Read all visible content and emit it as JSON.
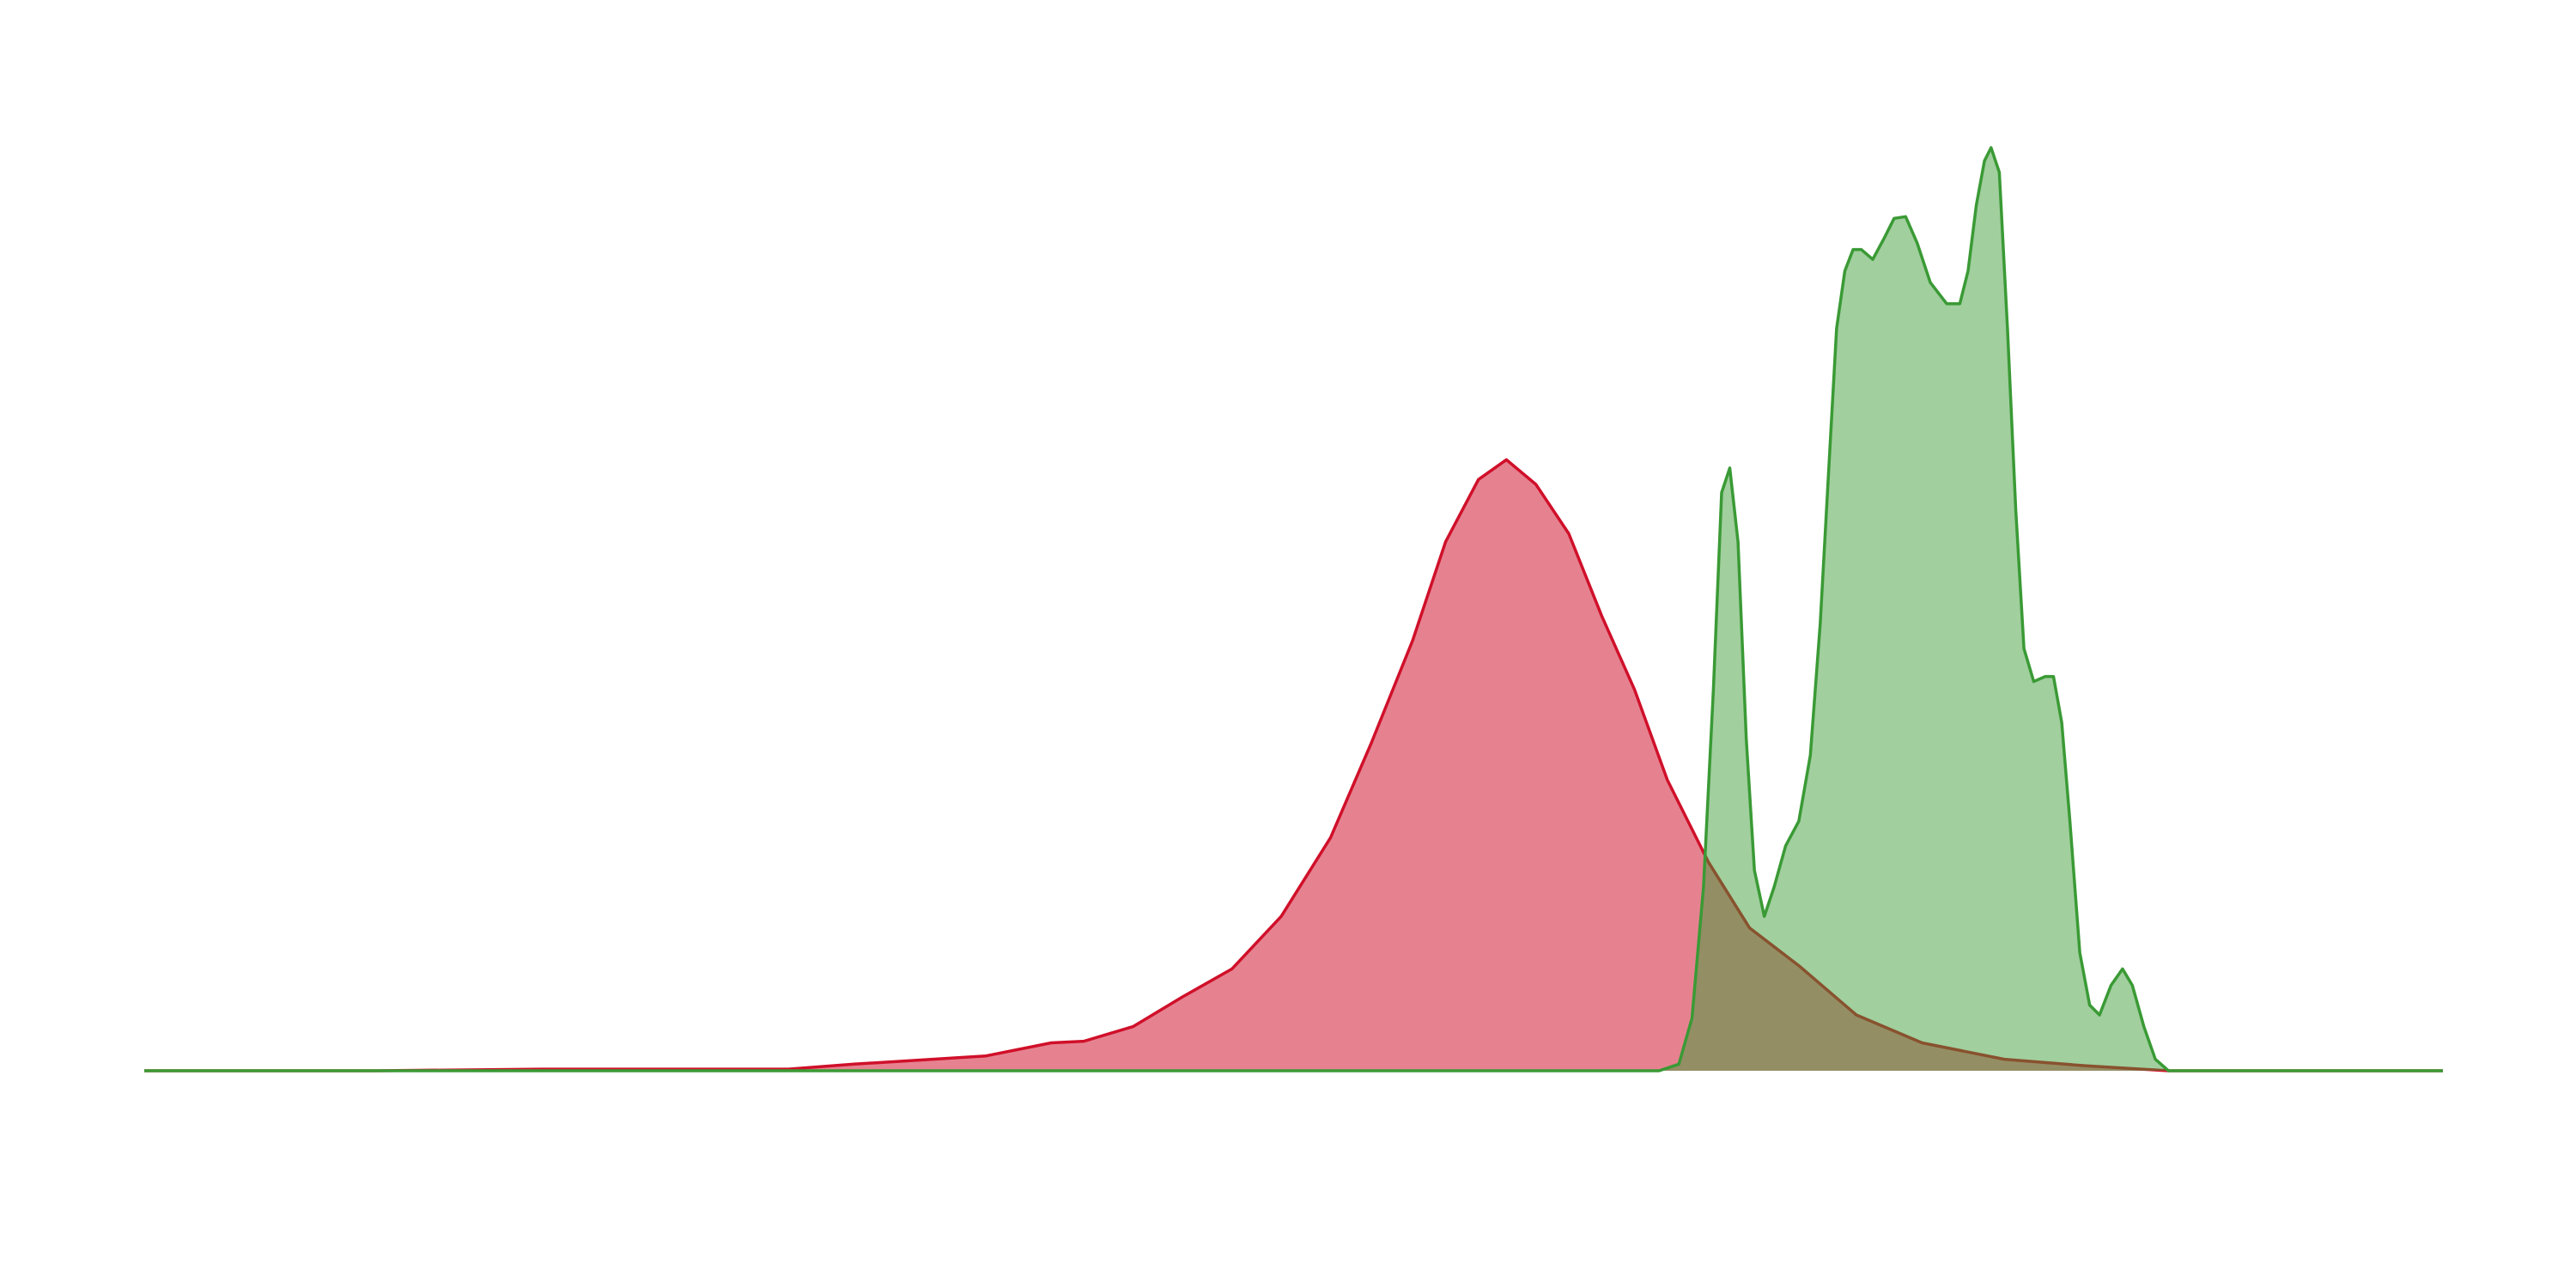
{
  "chart_data": {
    "type": "area",
    "xlim": [
      0,
      1399
    ],
    "ylim": [
      0,
      562
    ],
    "series": [
      {
        "color": "#d0102a",
        "x": [
          0,
          142,
          242,
          312,
          392,
          432,
          512,
          552,
          572,
          602,
          632,
          662,
          692,
          722,
          747,
          772,
          792,
          812,
          829,
          847,
          867,
          887,
          907,
          927,
          952,
          977,
          1007,
          1042,
          1082,
          1132,
          1182,
          1232,
          1312,
          1399
        ],
        "values": [
          0,
          0,
          1,
          1,
          1,
          4,
          9,
          17,
          18,
          27,
          45,
          62,
          94,
          142,
          200,
          262,
          322,
          360,
          372,
          357,
          327,
          277,
          232,
          177,
          127,
          87,
          64,
          34,
          17,
          7,
          3,
          0,
          0,
          0
        ]
      },
      {
        "color": "#3a9a35",
        "x": [
          0,
          922,
          934,
          942,
          949,
          955,
          960,
          965,
          970,
          975,
          980,
          986,
          992,
          999,
          1007,
          1014,
          1020,
          1025,
          1030,
          1035,
          1040,
          1045,
          1052,
          1059,
          1065,
          1072,
          1079,
          1087,
          1097,
          1105,
          1110,
          1115,
          1120,
          1124,
          1129,
          1134,
          1139,
          1144,
          1150,
          1157,
          1162,
          1167,
          1172,
          1178,
          1184,
          1190,
          1197,
          1204,
          1210,
          1217,
          1224,
          1232,
          1399
        ],
        "values": [
          0,
          0,
          4,
          32,
          112,
          232,
          352,
          367,
          322,
          202,
          122,
          94,
          112,
          137,
          152,
          192,
          272,
          362,
          452,
          487,
          500,
          500,
          494,
          507,
          519,
          520,
          504,
          480,
          467,
          467,
          487,
          527,
          554,
          562,
          547,
          452,
          342,
          257,
          237,
          240,
          240,
          212,
          152,
          72,
          40,
          34,
          52,
          62,
          52,
          27,
          7,
          0,
          0
        ]
      }
    ]
  }
}
